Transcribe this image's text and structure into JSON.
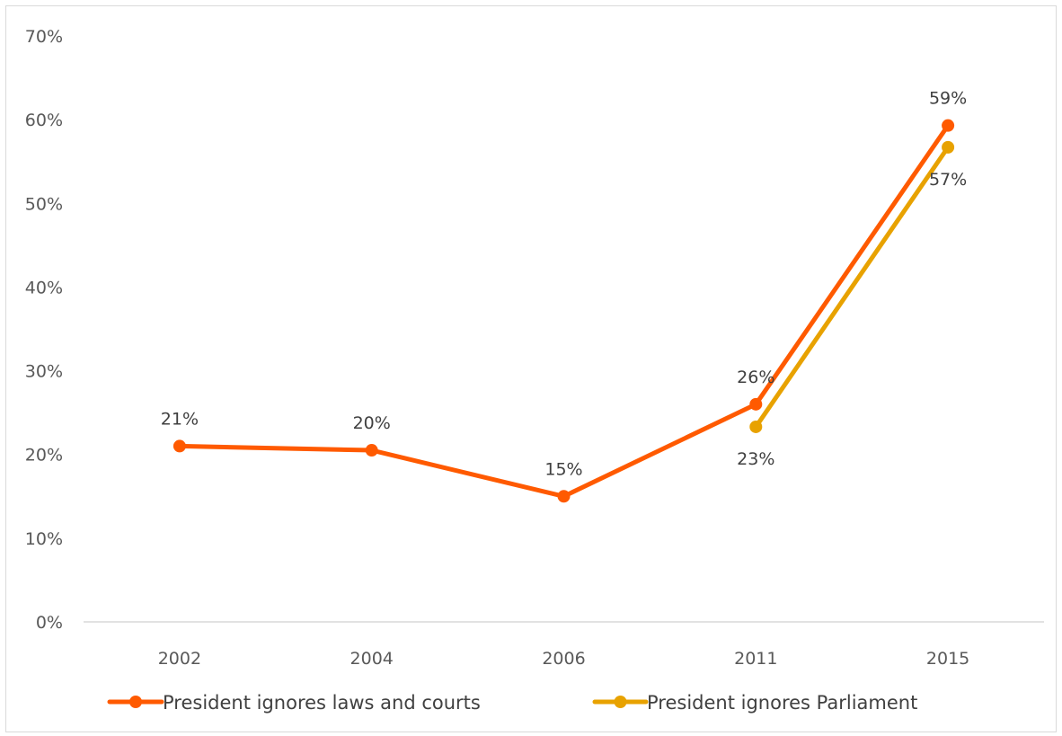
{
  "chart_data": {
    "type": "line",
    "categories": [
      "2002",
      "2004",
      "2006",
      "2011",
      "2015"
    ],
    "ylim": [
      0,
      70
    ],
    "yticks": [
      "0%",
      "10%",
      "20%",
      "30%",
      "40%",
      "50%",
      "60%",
      "70%"
    ],
    "y_tick_values": [
      0,
      10,
      20,
      30,
      40,
      50,
      60,
      70
    ],
    "grid": false,
    "legend_position": "bottom",
    "series": [
      {
        "name": "President ignores laws and courts",
        "color": "#FF5A00",
        "values": [
          21,
          20.5,
          15,
          26,
          59.3
        ],
        "labels": [
          "21%",
          "20%",
          "15%",
          "26%",
          "59%"
        ],
        "label_position": "above"
      },
      {
        "name": "President ignores Parliament",
        "color": "#E8A200",
        "values": [
          null,
          null,
          null,
          23.3,
          56.7
        ],
        "labels": [
          null,
          null,
          null,
          "23%",
          "57%"
        ],
        "label_position": "below"
      }
    ]
  }
}
